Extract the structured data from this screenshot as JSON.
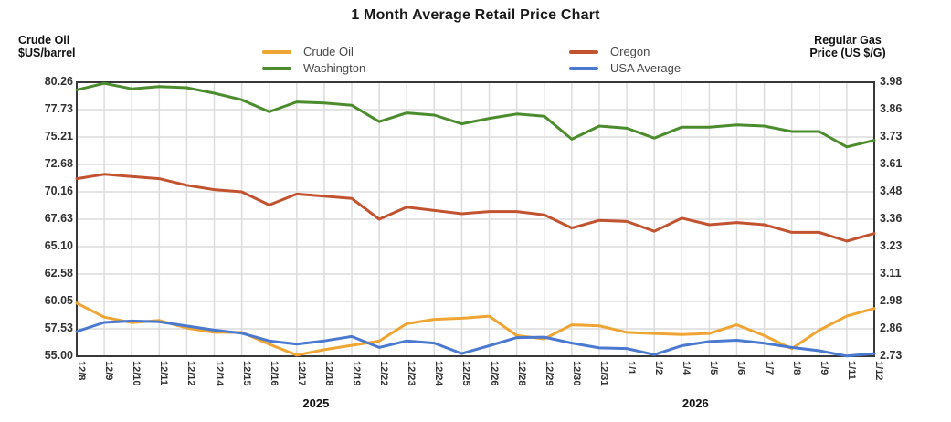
{
  "title": "1 Month Average Retail Price Chart",
  "left_axis": {
    "label_line1": "Crude Oil",
    "label_line2": "$US/barrel",
    "ticks": [
      "80.26",
      "77.73",
      "75.21",
      "72.68",
      "70.16",
      "67.63",
      "65.10",
      "62.58",
      "60.05",
      "57.53",
      "55.00"
    ]
  },
  "right_axis": {
    "label_line1": "Regular Gas",
    "label_line2": "Price (US $/G)",
    "ticks": [
      "3.98",
      "3.86",
      "3.73",
      "3.61",
      "3.48",
      "3.36",
      "3.23",
      "3.11",
      "2.98",
      "2.86",
      "2.73"
    ]
  },
  "legend": [
    {
      "label": "Crude Oil",
      "color": "#EFA534"
    },
    {
      "label": "Washington",
      "color": "#4C8C2E"
    },
    {
      "label": "Oregon",
      "color": "#C25331"
    },
    {
      "label": "USA Average",
      "color": "#4B79D0"
    }
  ],
  "chart_data": {
    "type": "line",
    "title": "1 Month Average Retail Price Chart",
    "categories": [
      "12/8",
      "12/9",
      "12/10",
      "12/11",
      "12/12",
      "12/14",
      "12/15",
      "12/16",
      "12/17",
      "12/18",
      "12/19",
      "12/22",
      "12/23",
      "12/24",
      "12/25",
      "12/26",
      "12/28",
      "12/29",
      "12/30",
      "12/31",
      "1/1",
      "1/2",
      "1/4",
      "1/5",
      "1/6",
      "1/7",
      "1/8",
      "1/9",
      "1/11",
      "1/12"
    ],
    "year_groups": [
      {
        "label": "2025",
        "start": 0,
        "end": 19,
        "label_center_index": 8.7
      },
      {
        "label": "2026",
        "start": 20,
        "end": 29,
        "label_center_index": 22.5
      }
    ],
    "left_axis": {
      "label": "Crude Oil $US/barrel",
      "range": [
        55.0,
        80.26
      ]
    },
    "right_axis": {
      "label": "Regular Gas Price (US $/G)",
      "range": [
        2.73,
        3.98
      ]
    },
    "grid": true,
    "legend_position": "top",
    "series": [
      {
        "name": "Crude Oil",
        "axis": "left",
        "color": "#EFA534",
        "values": [
          59.9,
          58.6,
          58.1,
          58.3,
          57.6,
          57.2,
          57.2,
          56.1,
          55.1,
          55.6,
          56.0,
          56.4,
          58.0,
          58.4,
          58.5,
          58.7,
          56.9,
          56.6,
          57.9,
          57.8,
          57.2,
          57.1,
          57.0,
          57.1,
          57.9,
          56.9,
          55.7,
          57.4,
          58.7,
          59.4
        ]
      },
      {
        "name": "Washington",
        "axis": "right",
        "color": "#4C8C2E",
        "values": [
          3.945,
          3.975,
          3.95,
          3.96,
          3.955,
          3.93,
          3.9,
          3.845,
          3.89,
          3.885,
          3.875,
          3.8,
          3.84,
          3.83,
          3.79,
          3.815,
          3.835,
          3.825,
          3.72,
          3.78,
          3.77,
          3.725,
          3.775,
          3.775,
          3.785,
          3.78,
          3.755,
          3.755,
          3.685,
          3.715
        ]
      },
      {
        "name": "Oregon",
        "axis": "right",
        "color": "#C25331",
        "values": [
          3.54,
          3.56,
          3.55,
          3.54,
          3.51,
          3.49,
          3.48,
          3.42,
          3.47,
          3.46,
          3.45,
          3.355,
          3.41,
          3.395,
          3.38,
          3.39,
          3.39,
          3.375,
          3.315,
          3.35,
          3.345,
          3.3,
          3.36,
          3.33,
          3.34,
          3.33,
          3.295,
          3.295,
          3.255,
          3.29
        ]
      },
      {
        "name": "USA Average",
        "axis": "right",
        "color": "#4B79D0",
        "values": [
          2.843,
          2.884,
          2.891,
          2.887,
          2.868,
          2.849,
          2.835,
          2.8,
          2.785,
          2.8,
          2.82,
          2.77,
          2.8,
          2.79,
          2.742,
          2.778,
          2.815,
          2.817,
          2.79,
          2.768,
          2.765,
          2.737,
          2.778,
          2.797,
          2.803,
          2.789,
          2.77,
          2.755,
          2.731,
          2.742
        ]
      }
    ]
  }
}
